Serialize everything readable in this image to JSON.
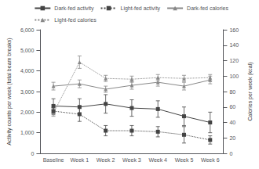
{
  "chart_data": {
    "type": "line",
    "categories": [
      "Baseline",
      "Week 1",
      "Week 2",
      "Week 3",
      "Week 4",
      "Week 5",
      "Week 6"
    ],
    "series": [
      {
        "name": "Dark-fed activity",
        "color": "#444444",
        "line_style": "solid",
        "marker": "square",
        "axis": "y",
        "values": [
          2300,
          2250,
          2400,
          2200,
          2150,
          1800,
          1500
        ],
        "errors": [
          350,
          400,
          450,
          400,
          400,
          450,
          500
        ]
      },
      {
        "name": "Light-fed activity",
        "color": "#444444",
        "line_style": "dotted",
        "marker": "square",
        "axis": "y",
        "values": [
          2050,
          1900,
          1100,
          1100,
          1050,
          900,
          650
        ],
        "errors": [
          150,
          350,
          250,
          250,
          250,
          400,
          200
        ]
      },
      {
        "name": "Dark-fed calories",
        "color": "#888888",
        "line_style": "solid",
        "marker": "triangle",
        "axis": "y2",
        "values": [
          87,
          90,
          83,
          88,
          92,
          87,
          95
        ],
        "errors": [
          5,
          5,
          4,
          5,
          5,
          5,
          5
        ]
      },
      {
        "name": "Light-fed calories",
        "color": "#888888",
        "line_style": "dotted",
        "marker": "triangle",
        "axis": "y2",
        "values": [
          52,
          118,
          97,
          96,
          98,
          97,
          98
        ],
        "errors": [
          4,
          8,
          4,
          4,
          4,
          4,
          4
        ]
      }
    ],
    "ylim": [
      0,
      6000
    ],
    "yticks": [
      0,
      {
        "value": 1000,
        "label": "1,000"
      },
      {
        "value": 2000,
        "label": "2,000"
      },
      {
        "value": 3000,
        "label": "3,000"
      },
      {
        "value": 4000,
        "label": "4,000"
      },
      {
        "value": 5000,
        "label": "5,000"
      },
      {
        "value": 6000,
        "label": "6,000"
      }
    ],
    "ylabel": "Activity counts per week (total beam breaks)",
    "y2lim": [
      0,
      160
    ],
    "y2ticks": [
      0,
      20,
      40,
      60,
      80,
      100,
      120,
      140,
      160
    ],
    "y2label": "Calories per week (kcal)",
    "legend": "upper right",
    "grid": false
  }
}
